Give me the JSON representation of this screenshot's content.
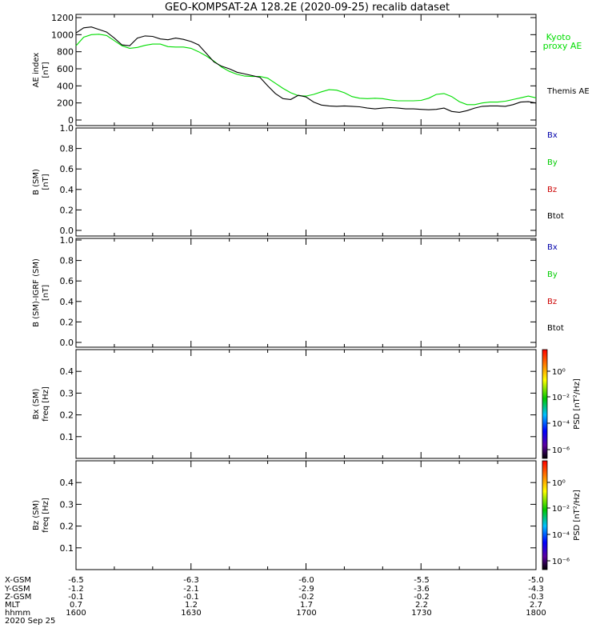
{
  "title": "GEO-KOMPSAT-2A 128.2E (2020-09-25) recalib dataset",
  "colors": {
    "axis": "#000000",
    "kyoto": "#00dd00",
    "themis": "#000000",
    "bx": "#0000aa",
    "by": "#00cc00",
    "bz": "#cc0000",
    "btot": "#000000"
  },
  "colorbar": {
    "label": "PSD [nT²/Hz]",
    "ticks": [
      "10⁰",
      "10⁻²",
      "10⁻⁴",
      "10⁻⁶"
    ]
  },
  "ephemeris": {
    "row_labels": [
      "X-GSM",
      "Y-GSM",
      "Z-GSM",
      "MLT",
      "hhmm"
    ],
    "columns": [
      [
        "-6.5",
        "-1.2",
        "-0.1",
        "0.7",
        "1600"
      ],
      [
        "-6.3",
        "-2.1",
        "-0.1",
        "1.2",
        "1630"
      ],
      [
        "-6.0",
        "-2.9",
        "-0.2",
        "1.7",
        "1700"
      ],
      [
        "-5.5",
        "-3.6",
        "-0.2",
        "2.2",
        "1730"
      ],
      [
        "-5.0",
        "-4.3",
        "-0.3",
        "2.7",
        "1800"
      ]
    ],
    "date": "2020 Sep 25"
  },
  "chart_data": [
    {
      "type": "line",
      "panel": "ae",
      "ylabel_lines": [
        "AE index",
        "[nT]"
      ],
      "ylim": [
        0,
        1200
      ],
      "yticks": [
        "0",
        "200",
        "400",
        "600",
        "800",
        "1000",
        "1200"
      ],
      "xlim_minutes": [
        0,
        120
      ],
      "legend": [
        "Kyoto proxy AE",
        "Themis AE"
      ],
      "series": [
        {
          "name": "Kyoto proxy AE",
          "color_key": "kyoto",
          "x": [
            0,
            2,
            4,
            6,
            8,
            10,
            12,
            14,
            16,
            18,
            20,
            22,
            24,
            26,
            28,
            30,
            32,
            34,
            36,
            38,
            40,
            42,
            44,
            46,
            48,
            50,
            52,
            54,
            56,
            58,
            60,
            62,
            64,
            66,
            68,
            70,
            72,
            74,
            76,
            78,
            80,
            82,
            84,
            86,
            88,
            90,
            92,
            94,
            96,
            98,
            100,
            102,
            104,
            106,
            108,
            110,
            112,
            114,
            116,
            118,
            120
          ],
          "values": [
            870,
            970,
            1000,
            1005,
            990,
            930,
            870,
            840,
            850,
            875,
            890,
            890,
            860,
            855,
            855,
            840,
            800,
            750,
            690,
            620,
            570,
            535,
            515,
            510,
            510,
            490,
            430,
            370,
            320,
            285,
            280,
            300,
            330,
            355,
            350,
            320,
            275,
            255,
            250,
            255,
            250,
            235,
            225,
            225,
            225,
            230,
            255,
            300,
            310,
            275,
            215,
            180,
            180,
            200,
            210,
            210,
            220,
            240,
            260,
            280,
            260
          ]
        },
        {
          "name": "Themis AE",
          "color_key": "themis",
          "x": [
            0,
            2,
            4,
            6,
            8,
            10,
            12,
            14,
            16,
            18,
            20,
            22,
            24,
            26,
            28,
            30,
            32,
            34,
            36,
            38,
            40,
            42,
            44,
            46,
            48,
            50,
            52,
            54,
            56,
            58,
            60,
            62,
            64,
            66,
            68,
            70,
            72,
            74,
            76,
            78,
            80,
            82,
            84,
            86,
            88,
            90,
            92,
            94,
            96,
            98,
            100,
            102,
            104,
            106,
            108,
            110,
            112,
            114,
            116,
            118,
            120
          ],
          "values": [
            1020,
            1080,
            1090,
            1060,
            1030,
            960,
            880,
            870,
            960,
            985,
            980,
            950,
            940,
            960,
            945,
            920,
            880,
            780,
            680,
            630,
            600,
            560,
            540,
            520,
            500,
            400,
            310,
            250,
            240,
            290,
            270,
            210,
            175,
            165,
            160,
            165,
            160,
            155,
            140,
            130,
            140,
            145,
            140,
            130,
            130,
            125,
            120,
            125,
            140,
            100,
            90,
            110,
            140,
            160,
            165,
            165,
            160,
            180,
            210,
            215,
            200
          ]
        }
      ]
    },
    {
      "type": "line",
      "panel": "b_sm",
      "ylabel_lines": [
        "B (SM)",
        "[nT]"
      ],
      "ylim": [
        0.0,
        1.0
      ],
      "yticks": [
        "0.0",
        "0.2",
        "0.4",
        "0.6",
        "0.8",
        "1.0"
      ],
      "legend": [
        "Bx",
        "By",
        "Bz",
        "Btot"
      ],
      "series": []
    },
    {
      "type": "line",
      "panel": "b_igrf",
      "ylabel_lines": [
        "B (SM)-IGRF (SM)",
        "[nT]"
      ],
      "ylim": [
        0.0,
        1.0
      ],
      "yticks": [
        "0.0",
        "0.2",
        "0.4",
        "0.6",
        "0.8",
        "1.0"
      ],
      "legend": [
        "Bx",
        "By",
        "Bz",
        "Btot"
      ],
      "series": []
    },
    {
      "type": "heatmap",
      "panel": "bx_spec",
      "ylabel_lines": [
        "Bx (SM)",
        "freq [Hz]"
      ],
      "ylim": [
        0.0,
        0.5
      ],
      "yticks": [
        "0.1",
        "0.2",
        "0.3",
        "0.4"
      ],
      "series": []
    },
    {
      "type": "heatmap",
      "panel": "bz_spec",
      "ylabel_lines": [
        "Bz (SM)",
        "freq [Hz]"
      ],
      "ylim": [
        0.0,
        0.5
      ],
      "yticks": [
        "0.1",
        "0.2",
        "0.3",
        "0.4"
      ],
      "series": []
    }
  ]
}
